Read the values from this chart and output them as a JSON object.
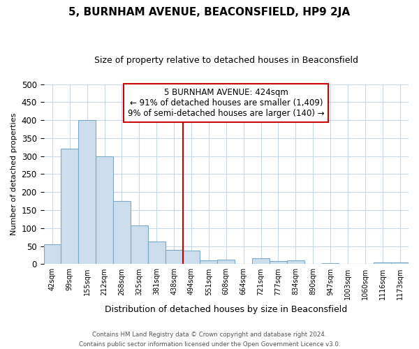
{
  "title": "5, BURNHAM AVENUE, BEACONSFIELD, HP9 2JA",
  "subtitle": "Size of property relative to detached houses in Beaconsfield",
  "xlabel": "Distribution of detached houses by size in Beaconsfield",
  "ylabel": "Number of detached properties",
  "bar_labels": [
    "42sqm",
    "99sqm",
    "155sqm",
    "212sqm",
    "268sqm",
    "325sqm",
    "381sqm",
    "438sqm",
    "494sqm",
    "551sqm",
    "608sqm",
    "664sqm",
    "721sqm",
    "777sqm",
    "834sqm",
    "890sqm",
    "947sqm",
    "1003sqm",
    "1060sqm",
    "1116sqm",
    "1173sqm"
  ],
  "bar_values": [
    55,
    320,
    400,
    300,
    175,
    108,
    63,
    40,
    37,
    10,
    12,
    0,
    17,
    8,
    10,
    0,
    3,
    0,
    0,
    4,
    5
  ],
  "bar_color": "#ccdded",
  "bar_edge_color": "#7aaac8",
  "vline_color": "#cc0000",
  "vline_bar_index": 7,
  "annotation_title": "5 BURNHAM AVENUE: 424sqm",
  "annotation_line1": "← 91% of detached houses are smaller (1,409)",
  "annotation_line2": "9% of semi-detached houses are larger (140) →",
  "annotation_box_facecolor": "#ffffff",
  "annotation_box_edgecolor": "#cc0000",
  "ylim": [
    0,
    500
  ],
  "yticks": [
    0,
    50,
    100,
    150,
    200,
    250,
    300,
    350,
    400,
    450,
    500
  ],
  "footer1": "Contains HM Land Registry data © Crown copyright and database right 2024.",
  "footer2": "Contains public sector information licensed under the Open Government Licence v3.0.",
  "background_color": "#ffffff",
  "grid_color": "#c8d8e8",
  "title_fontsize": 11,
  "subtitle_fontsize": 9,
  "ylabel_fontsize": 8,
  "xlabel_fontsize": 9
}
